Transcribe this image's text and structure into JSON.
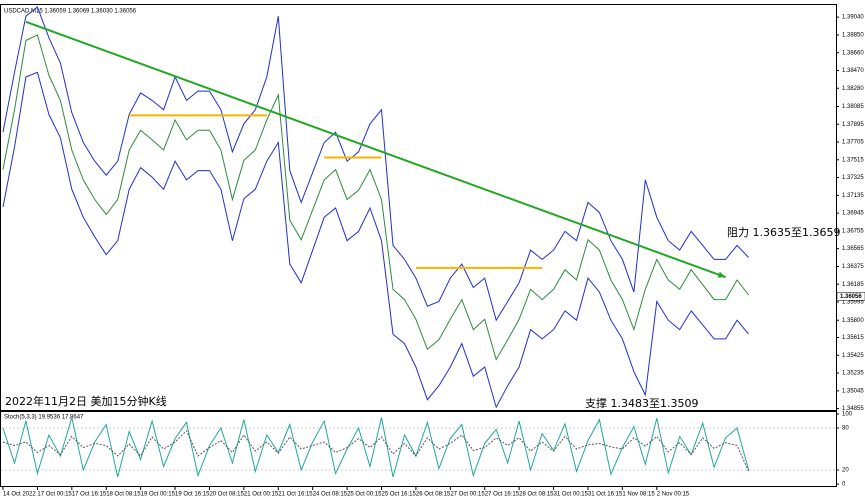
{
  "chart_data": [
    {
      "type": "line",
      "title": "USDCAD,M15 1.36059 1.36069 1.36030 1.36056",
      "categories": [
        "14 Oct 2022",
        null,
        null,
        "17 Oct 00:15",
        null,
        null,
        "17 Oct 16:15",
        null,
        null,
        "18 Oct 08:15",
        null,
        null,
        "19 Oct 00:15",
        null,
        null,
        "19 Oct 16:15",
        null,
        null,
        "20 Oct 08:15",
        null,
        null,
        "21 Oct 00:15",
        null,
        null,
        "21 Oct 16:15",
        null,
        null,
        "24 Oct 08:15",
        null,
        null,
        "25 Oct 00:15",
        null,
        null,
        "25 Oct 16:15",
        null,
        null,
        "26 Oct 08:15",
        null,
        null,
        "27 Oct 00:15",
        null,
        null,
        "27 Oct 16:15",
        null,
        null,
        "28 Oct 08:15",
        null,
        null,
        "31 Oct 00:15",
        null,
        null,
        "31 Oct 16:15",
        null,
        null,
        "1 Nov 08:15",
        null,
        null,
        "2 Nov 00:15",
        null,
        null,
        null,
        null,
        null,
        null,
        null,
        null
      ],
      "series": [
        {
          "color": "#2e8b3a",
          "values": [
            1.3741,
            1.3805,
            1.3879,
            1.3885,
            1.3842,
            1.3815,
            1.3762,
            1.373,
            1.3709,
            1.3693,
            1.3709,
            1.3762,
            1.3783,
            1.3773,
            1.3762,
            1.3794,
            1.3773,
            1.3783,
            1.3783,
            1.3762,
            1.3709,
            1.3751,
            1.3762,
            1.3794,
            1.3821,
            1.3687,
            1.3666,
            1.3698,
            1.373,
            1.3741,
            1.3709,
            1.3719,
            1.3741,
            1.3709,
            1.3613,
            1.3602,
            1.3581,
            1.3549,
            1.3559,
            1.3581,
            1.3602,
            1.357,
            1.3581,
            1.3538,
            1.3559,
            1.3581,
            1.3613,
            1.3602,
            1.3613,
            1.3634,
            1.3623,
            1.3666,
            1.3655,
            1.3623,
            1.3602,
            1.357,
            1.3613,
            1.3645,
            1.3623,
            1.3613,
            1.3634,
            1.3618,
            1.3602,
            1.3602,
            1.3623,
            1.3607
          ]
        },
        {
          "color": "#1f2fd0",
          "values": [
            1.3781,
            1.3845,
            1.3905,
            1.3915,
            1.3882,
            1.3855,
            1.3802,
            1.377,
            1.375,
            1.3735,
            1.375,
            1.38,
            1.3823,
            1.3815,
            1.3805,
            1.384,
            1.3815,
            1.3825,
            1.3825,
            1.3805,
            1.376,
            1.379,
            1.3805,
            1.384,
            1.3905,
            1.374,
            1.3706,
            1.3738,
            1.377,
            1.3781,
            1.375,
            1.376,
            1.379,
            1.3805,
            1.366,
            1.3645,
            1.3625,
            1.3595,
            1.36,
            1.3625,
            1.364,
            1.3615,
            1.3625,
            1.358,
            1.36,
            1.362,
            1.3655,
            1.3645,
            1.3655,
            1.3675,
            1.3665,
            1.3706,
            1.3695,
            1.3665,
            1.3645,
            1.361,
            1.373,
            1.369,
            1.3665,
            1.3655,
            1.3675,
            1.366,
            1.3645,
            1.3645,
            1.366,
            1.3647
          ]
        },
        {
          "color": "#1f2fd0",
          "values": [
            1.3701,
            1.3765,
            1.384,
            1.3845,
            1.38,
            1.3775,
            1.372,
            1.369,
            1.3669,
            1.365,
            1.3665,
            1.372,
            1.3743,
            1.3733,
            1.372,
            1.375,
            1.373,
            1.374,
            1.374,
            1.372,
            1.3665,
            1.371,
            1.372,
            1.375,
            1.377,
            1.364,
            1.362,
            1.3655,
            1.369,
            1.37,
            1.3665,
            1.3675,
            1.37,
            1.3665,
            1.3565,
            1.3555,
            1.353,
            1.3495,
            1.351,
            1.353,
            1.3555,
            1.352,
            1.353,
            1.3487,
            1.351,
            1.353,
            1.357,
            1.356,
            1.357,
            1.359,
            1.358,
            1.3625,
            1.361,
            1.358,
            1.356,
            1.3525,
            1.35,
            1.36,
            1.358,
            1.357,
            1.359,
            1.3575,
            1.356,
            1.356,
            1.358,
            1.3565
          ]
        }
      ],
      "ylim": [
        1.3484,
        1.3917
      ],
      "yticks": [
        {
          "value": 1.3904,
          "label": "1.39040"
        },
        {
          "value": 1.3885,
          "label": "1.38850"
        },
        {
          "value": 1.3866,
          "label": "1.38660"
        },
        {
          "value": 1.3847,
          "label": "1.38470"
        },
        {
          "value": 1.3828,
          "label": "1.38280"
        },
        1.38085,
        1.37895,
        1.37705,
        1.37515,
        1.37325,
        1.37135,
        1.36945,
        1.36755,
        1.36565,
        1.36375,
        1.36185,
        1.35995,
        {
          "value": 1.358,
          "label": "1.35800"
        },
        1.35615,
        1.35425,
        1.35235,
        1.35045,
        1.34855
      ],
      "current_price": 1.36056,
      "trendline": {
        "color": "#22a822",
        "x": [
          2,
          63
        ],
        "values": [
          1.3899,
          1.3626
        ]
      },
      "levels": [
        {
          "color": "#f5b400",
          "value": 1.3799,
          "from": 11,
          "to": 23
        },
        {
          "color": "#f5b400",
          "value": 1.3754,
          "from": 28,
          "to": 33
        },
        {
          "color": "#f5b400",
          "value": 1.3636,
          "from": 36,
          "to": 47
        }
      ],
      "annotations": [
        "2022年11月2日 美加15分钟K线",
        "支撑 1.3483至1.3509",
        "阻力 1.3635至1.3659"
      ]
    },
    {
      "type": "line",
      "title": "Stoch(5,3,3) 19.9536 17.8647",
      "series": [
        {
          "color": "#20a8a0",
          "values": [
            80,
            30,
            90,
            15,
            70,
            40,
            95,
            20,
            60,
            85,
            10,
            75,
            35,
            90,
            25,
            65,
            88,
            12,
            55,
            80,
            30,
            92,
            18,
            70,
            45,
            85,
            20,
            60,
            90,
            15,
            50,
            80,
            25,
            95,
            10,
            70,
            40,
            88,
            22,
            65,
            85,
            12,
            58,
            78,
            30,
            90,
            20,
            72,
            48,
            86,
            18,
            62,
            92,
            14,
            52,
            82,
            28,
            94,
            16,
            68,
            42,
            87,
            24,
            66,
            80,
            20
          ]
        },
        {
          "color": "#555555",
          "values": [
            60,
            55,
            60,
            45,
            55,
            42,
            68,
            52,
            58,
            55,
            40,
            57,
            40,
            67,
            50,
            60,
            76,
            40,
            52,
            62,
            45,
            70,
            47,
            60,
            44,
            67,
            50,
            55,
            60,
            45,
            52,
            65,
            52,
            67,
            43,
            58,
            40,
            66,
            50,
            58,
            70,
            48,
            52,
            66,
            55,
            66,
            47,
            60,
            47,
            68,
            50,
            56,
            58,
            53,
            50,
            66,
            54,
            68,
            46,
            59,
            42,
            66,
            51,
            59,
            55,
            18
          ]
        }
      ],
      "ylim": [
        0,
        100
      ],
      "yticks": [
        100,
        80,
        20,
        0
      ]
    }
  ]
}
